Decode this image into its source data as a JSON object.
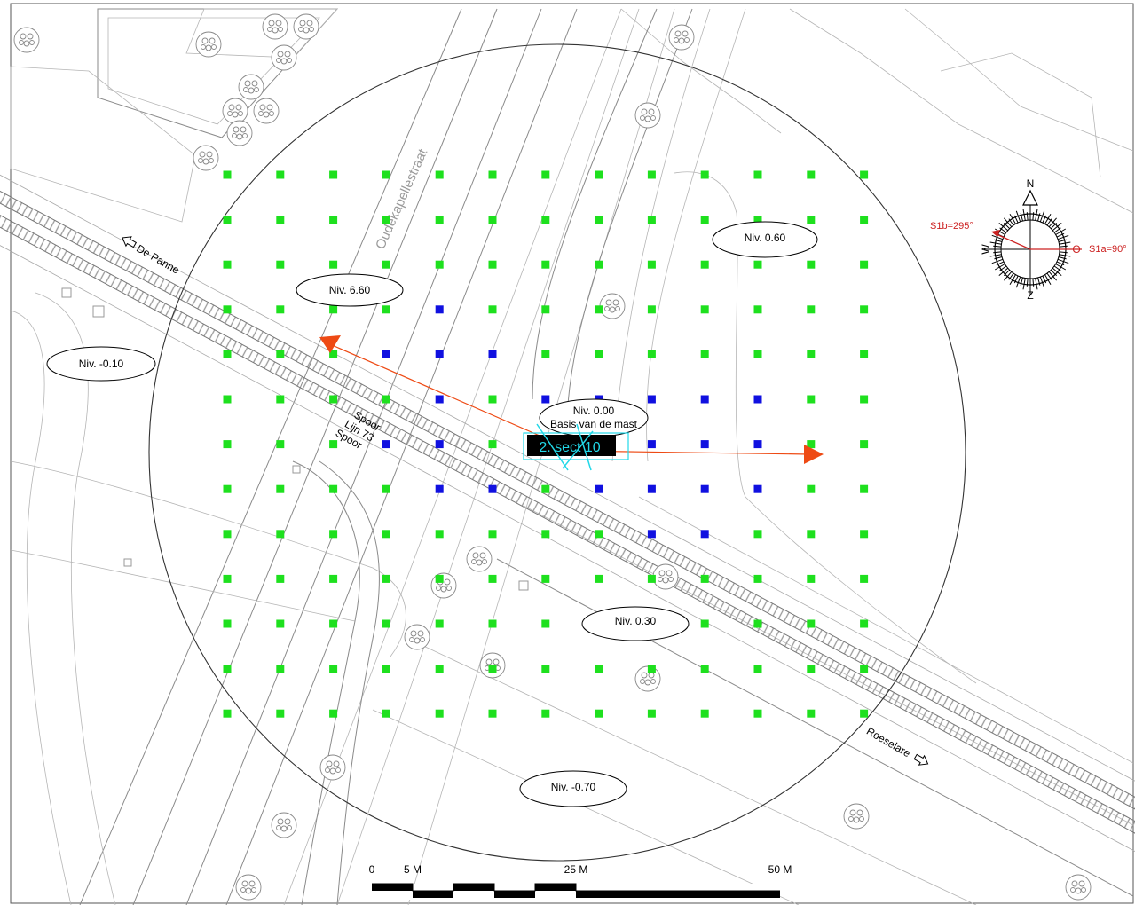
{
  "street_label": "Oudekapellestraat",
  "direction_labels": {
    "west": "De Panne",
    "east": "Roeselare"
  },
  "rail_label": [
    "Spoor",
    "Lijn 73",
    "Spoor"
  ],
  "levels": [
    {
      "id": "niv-6-60",
      "text": "Niv. 6.60"
    },
    {
      "id": "niv-minus-0-10",
      "text": "Niv. -0.10"
    },
    {
      "id": "niv-0-60",
      "text": "Niv. 0.60"
    },
    {
      "id": "niv-0-00",
      "text": "Niv. 0.00",
      "subtext": "Basis van de mast"
    },
    {
      "id": "niv-0-30",
      "text": "Niv. 0.30"
    },
    {
      "id": "niv-minus-0-70",
      "text": "Niv. -0.70"
    }
  ],
  "antenna_label": "2. sect 10",
  "compass": {
    "north": "N",
    "south": "Z",
    "west": "W",
    "east": "O",
    "sector_a": "S1a=90°",
    "sector_b": "S1b=295°"
  },
  "scale_bar": {
    "labels": [
      "0",
      "5 M",
      "25 M",
      "50 M"
    ]
  },
  "colors": {
    "grid_green": "#1ee01e",
    "grid_blue": "#1010e0",
    "arrow": "#ee4a14",
    "antenna_box": "#000000",
    "antenna_text": "#22d8e8",
    "compass_sector": "#cc2222"
  },
  "measurement_grid": {
    "cols": 13,
    "rows": 13,
    "blue_cells": [
      [
        3,
        4
      ],
      [
        4,
        3
      ],
      [
        4,
        4
      ],
      [
        4,
        5
      ],
      [
        5,
        4
      ],
      [
        5,
        6
      ],
      [
        5,
        7
      ],
      [
        5,
        8
      ],
      [
        5,
        9
      ],
      [
        5,
        10
      ],
      [
        6,
        3
      ],
      [
        6,
        4
      ],
      [
        6,
        6
      ],
      [
        6,
        8
      ],
      [
        6,
        9
      ],
      [
        6,
        10
      ],
      [
        7,
        4
      ],
      [
        7,
        5
      ],
      [
        7,
        7
      ],
      [
        7,
        8
      ],
      [
        7,
        9
      ],
      [
        7,
        10
      ],
      [
        8,
        8
      ],
      [
        8,
        9
      ]
    ]
  }
}
